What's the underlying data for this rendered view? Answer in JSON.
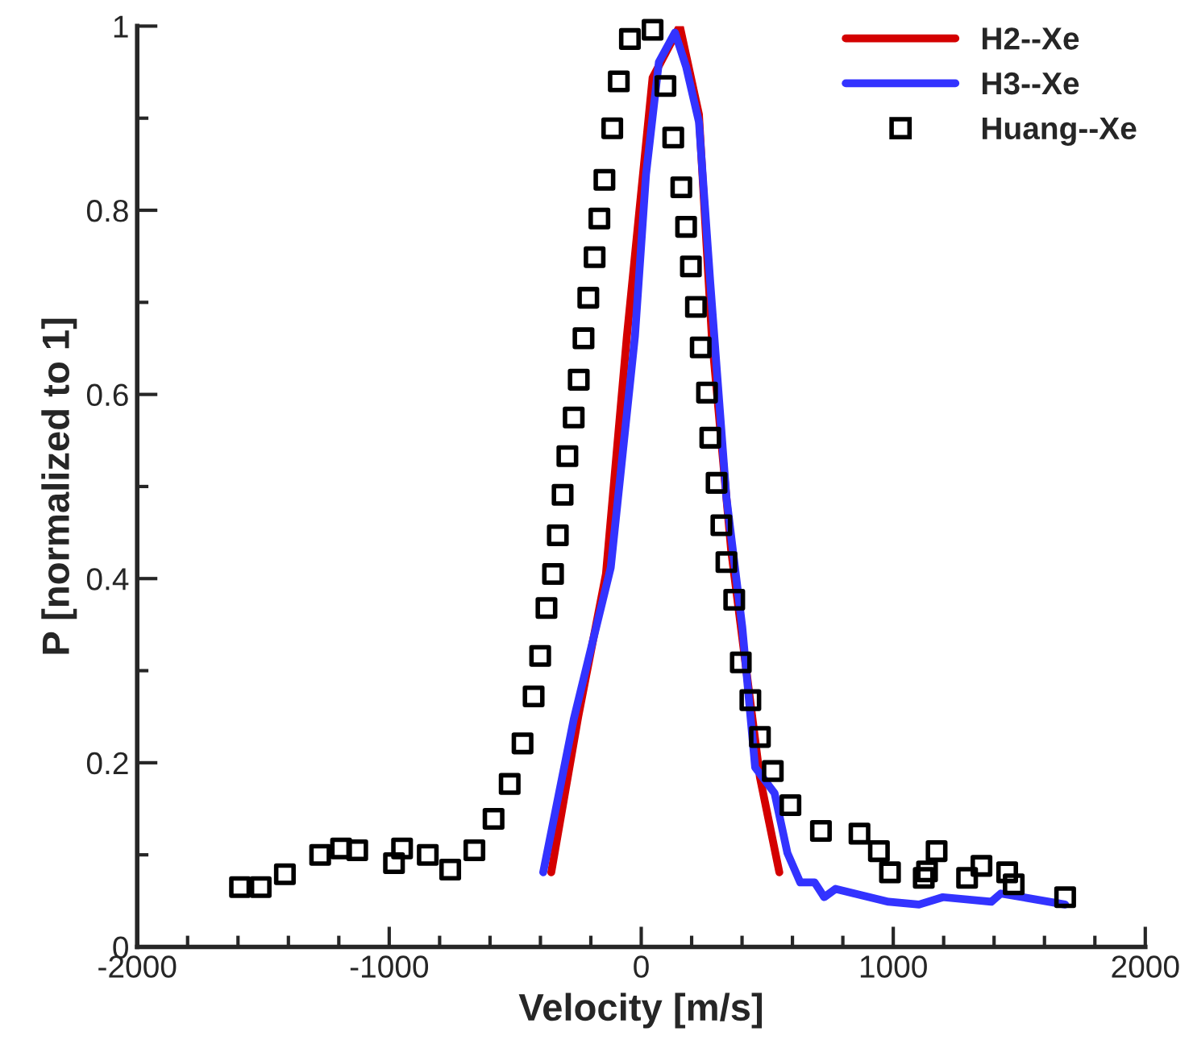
{
  "chart_data": {
    "type": "line",
    "xlabel": "Velocity [m/s]",
    "ylabel": "P [normalized to 1]",
    "xlim": [
      -2000,
      2000
    ],
    "xticks": [
      -2000,
      -1000,
      0,
      1000,
      2000
    ],
    "ylim": [
      0,
      1
    ],
    "yticks": [
      0,
      0.2,
      0.4,
      0.6,
      0.8,
      1
    ],
    "grid": false,
    "legend": "top right",
    "series": [
      {
        "name": "H2--Xe",
        "color": "#d40000",
        "marker": "none",
        "x": [
          -357,
          -250,
          -140,
          -57,
          45,
          153,
          229,
          280,
          357,
          471,
          548
        ],
        "values": [
          0.081,
          0.25,
          0.405,
          0.663,
          0.944,
          1.0,
          0.904,
          0.663,
          0.43,
          0.184,
          0.081
        ]
      },
      {
        "name": "H3--Xe",
        "color": "#3333ff",
        "marker": "none",
        "x": [
          -389,
          -268,
          -121,
          -25,
          19,
          70,
          134,
          178,
          229,
          274,
          338,
          401,
          452,
          529,
          580,
          631,
          688,
          726,
          771,
          981,
          1102,
          1197,
          1389,
          1427,
          1682
        ],
        "values": [
          0.081,
          0.247,
          0.412,
          0.663,
          0.839,
          0.961,
          0.993,
          0.956,
          0.896,
          0.721,
          0.488,
          0.347,
          0.195,
          0.167,
          0.102,
          0.07,
          0.07,
          0.054,
          0.063,
          0.049,
          0.046,
          0.054,
          0.049,
          0.058,
          0.046
        ]
      },
      {
        "name": "Huang--Xe",
        "type": "scatter",
        "color": "#000000",
        "marker": "square",
        "x": [
          -1592,
          -1510,
          -1414,
          -1274,
          -1191,
          -1127,
          -981,
          -949,
          -847,
          -758,
          -662,
          -586,
          -522,
          -471,
          -427,
          -401,
          -376,
          -350,
          -331,
          -312,
          -293,
          -268,
          -248,
          -229,
          -210,
          -185,
          -166,
          -146,
          -115,
          -89,
          -45,
          45,
          96,
          127,
          159,
          178,
          197,
          217,
          236,
          261,
          274,
          299,
          318,
          338,
          369,
          395,
          433,
          471,
          522,
          592,
          713,
          866,
          943,
          987,
          1121,
          1134,
          1172,
          1293,
          1350,
          1452,
          1478,
          1682
        ],
        "values": [
          0.065,
          0.065,
          0.079,
          0.1,
          0.107,
          0.105,
          0.091,
          0.107,
          0.1,
          0.084,
          0.105,
          0.139,
          0.177,
          0.221,
          0.272,
          0.316,
          0.368,
          0.405,
          0.447,
          0.491,
          0.533,
          0.575,
          0.616,
          0.661,
          0.705,
          0.749,
          0.791,
          0.833,
          0.889,
          0.94,
          0.986,
          0.996,
          0.935,
          0.879,
          0.825,
          0.782,
          0.739,
          0.695,
          0.651,
          0.602,
          0.553,
          0.504,
          0.458,
          0.418,
          0.377,
          0.309,
          0.268,
          0.228,
          0.191,
          0.154,
          0.126,
          0.123,
          0.104,
          0.081,
          0.075,
          0.082,
          0.104,
          0.075,
          0.088,
          0.081,
          0.068,
          0.054
        ]
      }
    ]
  }
}
